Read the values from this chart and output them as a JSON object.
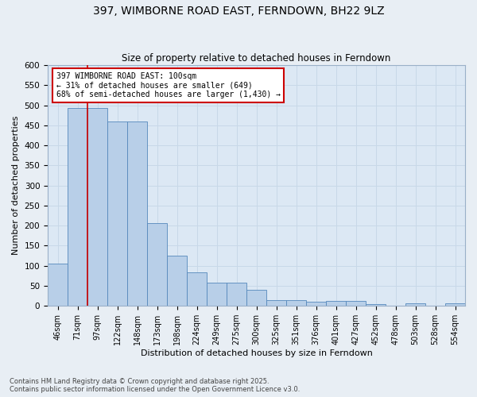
{
  "title_line1": "397, WIMBORNE ROAD EAST, FERNDOWN, BH22 9LZ",
  "title_line2": "Size of property relative to detached houses in Ferndown",
  "xlabel": "Distribution of detached houses by size in Ferndown",
  "ylabel": "Number of detached properties",
  "categories": [
    "46sqm",
    "71sqm",
    "97sqm",
    "122sqm",
    "148sqm",
    "173sqm",
    "198sqm",
    "224sqm",
    "249sqm",
    "275sqm",
    "300sqm",
    "325sqm",
    "351sqm",
    "376sqm",
    "401sqm",
    "427sqm",
    "452sqm",
    "478sqm",
    "503sqm",
    "528sqm",
    "554sqm"
  ],
  "values": [
    105,
    493,
    493,
    460,
    460,
    207,
    125,
    83,
    57,
    57,
    40,
    15,
    15,
    10,
    12,
    12,
    4,
    0,
    6,
    0,
    6
  ],
  "bar_color": "#b8cfe8",
  "bar_edge_color": "#5588bb",
  "annotation_text": "397 WIMBORNE ROAD EAST: 100sqm\n← 31% of detached houses are smaller (649)\n68% of semi-detached houses are larger (1,430) →",
  "annotation_box_color": "#ffffff",
  "annotation_box_edge": "#cc0000",
  "vline_color": "#cc0000",
  "ylim": [
    0,
    600
  ],
  "yticks": [
    0,
    50,
    100,
    150,
    200,
    250,
    300,
    350,
    400,
    450,
    500,
    550,
    600
  ],
  "grid_color": "#c8d8e8",
  "background_color": "#dce8f4",
  "fig_background": "#e8eef4",
  "footer_line1": "Contains HM Land Registry data © Crown copyright and database right 2025.",
  "footer_line2": "Contains public sector information licensed under the Open Government Licence v3.0."
}
